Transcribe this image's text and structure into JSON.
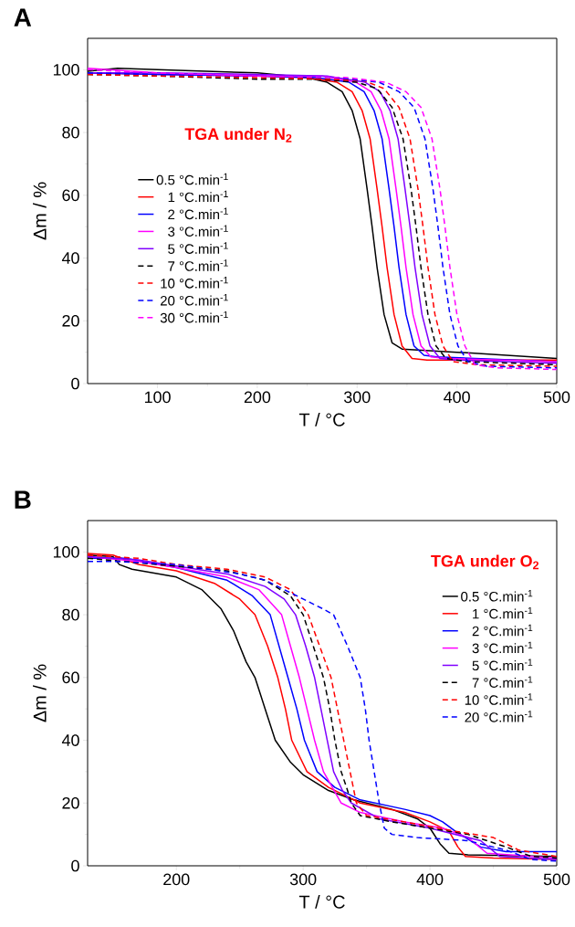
{
  "chart_data": [
    {
      "type": "line",
      "title": "A",
      "xlabel": "T / °C",
      "ylabel": "Δm / %",
      "annotations": [
        "TGA under N$_{2}$"
      ],
      "xlim": [
        30,
        500
      ],
      "ylim": [
        0,
        110
      ],
      "xticks": [
        100,
        200,
        300,
        400,
        500
      ],
      "yticks": [
        0,
        20,
        40,
        60,
        80,
        100
      ],
      "legend": "left",
      "series": [
        {
          "name": "0.5 °C.min$^{-1}$",
          "color": "#000000",
          "line_style": "solid",
          "x": [
            30,
            60,
            100,
            200,
            250,
            270,
            285,
            295,
            303,
            310,
            315,
            320,
            327,
            335,
            345,
            400,
            500
          ],
          "values": [
            99.5,
            100.5,
            100,
            99,
            97.5,
            96,
            93,
            87,
            78,
            62,
            50,
            37,
            22,
            13,
            11,
            10,
            8
          ]
        },
        {
          "name": "1 °C.min$^{-1}$",
          "color": "#ff0000",
          "line_style": "solid",
          "x": [
            30,
            100,
            200,
            250,
            280,
            295,
            305,
            313,
            320,
            325,
            330,
            337,
            345,
            355,
            370,
            500
          ],
          "values": [
            99,
            98.5,
            98,
            97.5,
            96,
            93,
            87,
            78,
            62,
            50,
            37,
            22,
            12,
            8,
            7.5,
            7.5
          ]
        },
        {
          "name": "2 °C.min$^{-1}$",
          "color": "#0000ff",
          "line_style": "solid",
          "x": [
            30,
            100,
            200,
            260,
            292,
            307,
            317,
            325,
            332,
            337,
            342,
            349,
            357,
            367,
            380,
            500
          ],
          "values": [
            99,
            98.5,
            98,
            97.5,
            96,
            93,
            87,
            78,
            62,
            50,
            37,
            22,
            12,
            9,
            8.5,
            7
          ]
        },
        {
          "name": "3 °C.min$^{-1}$",
          "color": "#ff00ff",
          "line_style": "solid",
          "x": [
            30,
            100,
            200,
            265,
            299,
            314,
            324,
            332,
            339,
            344,
            349,
            356,
            364,
            374,
            390,
            500
          ],
          "values": [
            100.5,
            99,
            98,
            98,
            96,
            93,
            87,
            78,
            62,
            50,
            37,
            22,
            12,
            8.5,
            8,
            7
          ]
        },
        {
          "name": "5 °C.min$^{-1}$",
          "color": "#8000ff",
          "line_style": "solid",
          "x": [
            30,
            100,
            200,
            270,
            308,
            323,
            333,
            341,
            348,
            353,
            358,
            365,
            373,
            383,
            400,
            500
          ],
          "values": [
            99,
            99,
            98.5,
            98,
            96,
            93,
            87,
            78,
            62,
            50,
            37,
            22,
            12,
            8,
            7.5,
            6.5
          ]
        },
        {
          "name": "7 °C.min$^{-1}$",
          "color": "#000000",
          "line_style": "dashed",
          "x": [
            30,
            100,
            200,
            260,
            300,
            320,
            335,
            346,
            354,
            359,
            364,
            371,
            379,
            389,
            410,
            500
          ],
          "values": [
            98.5,
            98,
            97,
            97,
            96,
            94,
            88,
            78,
            62,
            50,
            37,
            22,
            12,
            8,
            7,
            6
          ]
        },
        {
          "name": "10 °C.min$^{-1}$",
          "color": "#ff0000",
          "line_style": "dashed",
          "x": [
            30,
            100,
            200,
            270,
            307,
            327,
            342,
            353,
            361,
            366,
            371,
            378,
            386,
            396,
            420,
            500
          ],
          "values": [
            98.5,
            98,
            97.5,
            97,
            96.5,
            94,
            88,
            78,
            62,
            50,
            37,
            22,
            12,
            7,
            6,
            5.5
          ]
        },
        {
          "name": "20 °C.min$^{-1}$",
          "color": "#0000ff",
          "line_style": "dashed",
          "x": [
            30,
            100,
            200,
            280,
            322,
            342,
            357,
            368,
            376,
            381,
            386,
            393,
            401,
            411,
            430,
            500
          ],
          "values": [
            99,
            98.5,
            98,
            97.5,
            96,
            93,
            88,
            78,
            62,
            50,
            37,
            22,
            12,
            7,
            5.5,
            5
          ]
        },
        {
          "name": "30 °C.min$^{-1}$",
          "color": "#ff00ff",
          "line_style": "dashed",
          "x": [
            30,
            100,
            200,
            290,
            329,
            349,
            364,
            375,
            383,
            388,
            393,
            400,
            408,
            418,
            440,
            500
          ],
          "values": [
            100,
            99,
            98,
            97.5,
            96,
            93,
            88,
            78,
            62,
            50,
            37,
            22,
            12,
            6,
            5,
            4.5
          ]
        }
      ]
    },
    {
      "type": "line",
      "title": "B",
      "xlabel": "T / °C",
      "ylabel": "Δm / %",
      "annotations": [
        "TGA under O$_{2}$"
      ],
      "xlim": [
        130,
        500
      ],
      "ylim": [
        0,
        110
      ],
      "xticks": [
        200,
        300,
        400,
        500
      ],
      "yticks": [
        0,
        20,
        40,
        60,
        80,
        100
      ],
      "legend": "right",
      "series": [
        {
          "name": "0.5 °C.min$^{-1}$",
          "color": "#000000",
          "line_style": "solid",
          "x": [
            130,
            150,
            155,
            165,
            200,
            220,
            235,
            245,
            255,
            262,
            270,
            278,
            290,
            300,
            320,
            340,
            370,
            390,
            400,
            408,
            415,
            430,
            500
          ],
          "values": [
            99,
            98.5,
            96,
            94.5,
            92,
            88,
            82,
            75,
            65,
            60,
            50,
            40,
            33,
            29,
            24,
            21,
            18,
            15,
            12,
            7,
            4,
            3.5,
            3
          ]
        },
        {
          "name": "1 °C.min$^{-1}$",
          "color": "#ff0000",
          "line_style": "solid",
          "x": [
            130,
            150,
            170,
            200,
            230,
            250,
            262,
            272,
            280,
            286,
            291,
            303,
            320,
            345,
            380,
            400,
            415,
            422,
            428,
            450,
            500
          ],
          "values": [
            99.5,
            99,
            96,
            94,
            90,
            85,
            80,
            70,
            60,
            50,
            40,
            30,
            25,
            20,
            17,
            14,
            11,
            6,
            3,
            2.5,
            2
          ]
        },
        {
          "name": "2 °C.min$^{-1}$",
          "color": "#0000ff",
          "line_style": "solid",
          "x": [
            130,
            160,
            200,
            240,
            260,
            274,
            281,
            288,
            295,
            301,
            311,
            325,
            345,
            380,
            400,
            410,
            420,
            440,
            460,
            500
          ],
          "values": [
            98,
            98,
            95,
            91,
            86,
            80,
            70,
            60,
            50,
            40,
            30,
            25,
            21,
            18,
            16,
            14,
            11,
            6,
            4.5,
            4.5
          ]
        },
        {
          "name": "3 °C.min$^{-1}$",
          "color": "#ff00ff",
          "line_style": "solid",
          "x": [
            130,
            170,
            200,
            240,
            265,
            283,
            290,
            297,
            303,
            309,
            316,
            330,
            345,
            380,
            410,
            430,
            445,
            500
          ],
          "values": [
            98.5,
            97,
            95,
            92,
            88,
            80,
            70,
            60,
            50,
            40,
            30,
            20,
            17,
            14,
            12,
            9,
            4,
            2.5
          ]
        },
        {
          "name": "5 °C.min$^{-1}$",
          "color": "#8000ff",
          "line_style": "solid",
          "x": [
            130,
            170,
            200,
            240,
            270,
            285,
            294,
            302,
            309,
            314,
            319,
            324,
            331,
            338,
            360,
            400,
            440,
            455,
            500
          ],
          "values": [
            98.5,
            97.5,
            95.5,
            93,
            89,
            85,
            80,
            70,
            60,
            50,
            40,
            30,
            24,
            20,
            15,
            12,
            8,
            3,
            2
          ]
        },
        {
          "name": "7 °C.min$^{-1}$",
          "color": "#000000",
          "line_style": "dashed",
          "x": [
            130,
            170,
            200,
            240,
            270,
            290,
            300,
            308,
            316,
            321,
            325,
            330,
            335,
            338,
            345,
            370,
            400,
            430,
            460,
            480,
            500
          ],
          "values": [
            98,
            null,
            null,
            94,
            91,
            86,
            80,
            70,
            60,
            50,
            40,
            30,
            24,
            20,
            16,
            14,
            12,
            10,
            6,
            3,
            2.5
          ]
        },
        {
          "name": "10 °C.min$^{-1}$",
          "color": "#ff0000",
          "line_style": "dashed",
          "x": [
            130,
            170,
            200,
            240,
            270,
            290,
            304,
            313,
            322,
            327,
            332,
            337,
            342,
            350,
            380,
            420,
            450,
            470,
            500
          ],
          "values": [
            99,
            98,
            96,
            94.5,
            92,
            88,
            80,
            70,
            60,
            50,
            40,
            30,
            20,
            16,
            14,
            11,
            9,
            5,
            3
          ]
        },
        {
          "name": "20 °C.min$^{-1}$",
          "color": "#0000ff",
          "line_style": "dashed",
          "x": [
            130,
            150,
            200,
            250,
            270,
            285,
            300,
            315,
            324,
            335,
            345,
            349,
            352,
            356,
            360,
            364,
            370,
            390,
            430,
            460,
            480,
            500
          ],
          "values": [
            97,
            97,
            96,
            93,
            91,
            88,
            85,
            82,
            80,
            70,
            60,
            50,
            40,
            30,
            20,
            12,
            10,
            9,
            8,
            5,
            2,
            1.5
          ]
        }
      ]
    }
  ]
}
